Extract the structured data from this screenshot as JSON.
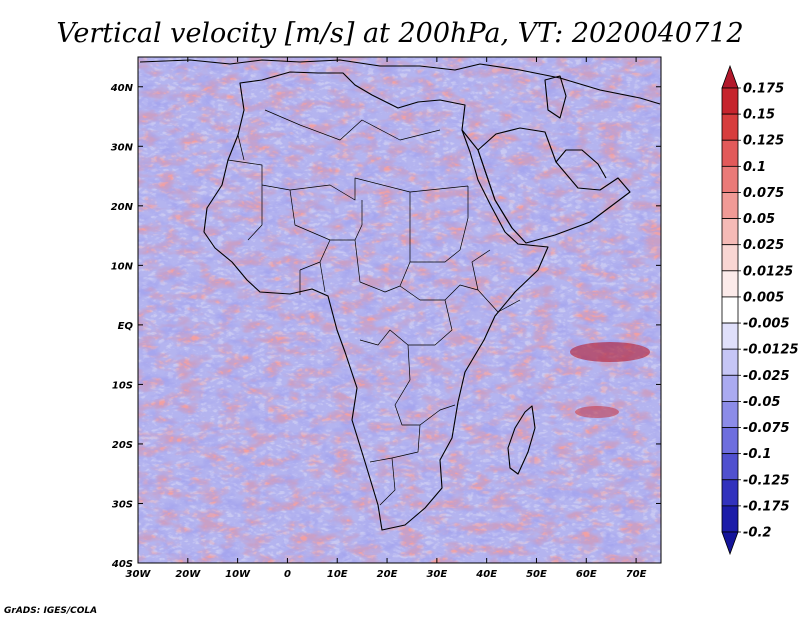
{
  "title": "Vertical velocity [m/s] at 200hPa, VT: 2020040712",
  "credit": "GrADS: IGES/COLA",
  "map": {
    "lon_range": [
      -30,
      75
    ],
    "lat_range": [
      -40,
      45
    ],
    "x_ticks": [
      {
        "value": -30,
        "label": "30W"
      },
      {
        "value": -20,
        "label": "20W"
      },
      {
        "value": -10,
        "label": "10W"
      },
      {
        "value": 0,
        "label": "0"
      },
      {
        "value": 10,
        "label": "10E"
      },
      {
        "value": 20,
        "label": "20E"
      },
      {
        "value": 30,
        "label": "30E"
      },
      {
        "value": 40,
        "label": "40E"
      },
      {
        "value": 50,
        "label": "50E"
      },
      {
        "value": 60,
        "label": "60E"
      },
      {
        "value": 70,
        "label": "70E"
      }
    ],
    "y_ticks": [
      {
        "value": 40,
        "label": "40N"
      },
      {
        "value": 30,
        "label": "30N"
      },
      {
        "value": 20,
        "label": "20N"
      },
      {
        "value": 10,
        "label": "10N"
      },
      {
        "value": 0,
        "label": "EQ"
      },
      {
        "value": -10,
        "label": "10S"
      },
      {
        "value": -20,
        "label": "20S"
      },
      {
        "value": -30,
        "label": "30S"
      },
      {
        "value": -40,
        "label": "40S"
      }
    ]
  },
  "colorbar": {
    "levels": [
      {
        "label": "0.175",
        "color": "#b2182b"
      },
      {
        "label": "0.15",
        "color": "#c6242d"
      },
      {
        "label": "0.125",
        "color": "#d73d3d"
      },
      {
        "label": "0.1",
        "color": "#e25a5a"
      },
      {
        "label": "0.075",
        "color": "#ea7a78"
      },
      {
        "label": "0.05",
        "color": "#f09a96"
      },
      {
        "label": "0.025",
        "color": "#f5bab6"
      },
      {
        "label": "0.0125",
        "color": "#f9d6d3"
      },
      {
        "label": "0.005",
        "color": "#fcebea"
      },
      {
        "label": "-0.005",
        "color": "#ffffff"
      },
      {
        "label": "-0.0125",
        "color": "#e0e0fb"
      },
      {
        "label": "-0.025",
        "color": "#c6c6f6"
      },
      {
        "label": "-0.05",
        "color": "#aaaaf0"
      },
      {
        "label": "-0.075",
        "color": "#8c8ce8"
      },
      {
        "label": "-0.1",
        "color": "#6e6ede"
      },
      {
        "label": "-0.125",
        "color": "#5050cf"
      },
      {
        "label": "-0.175",
        "color": "#3232bd"
      },
      {
        "label": "-0.2",
        "color": "#1c1ca8"
      }
    ],
    "top_color": "#b2182b",
    "bottom_color": "#14149a"
  }
}
